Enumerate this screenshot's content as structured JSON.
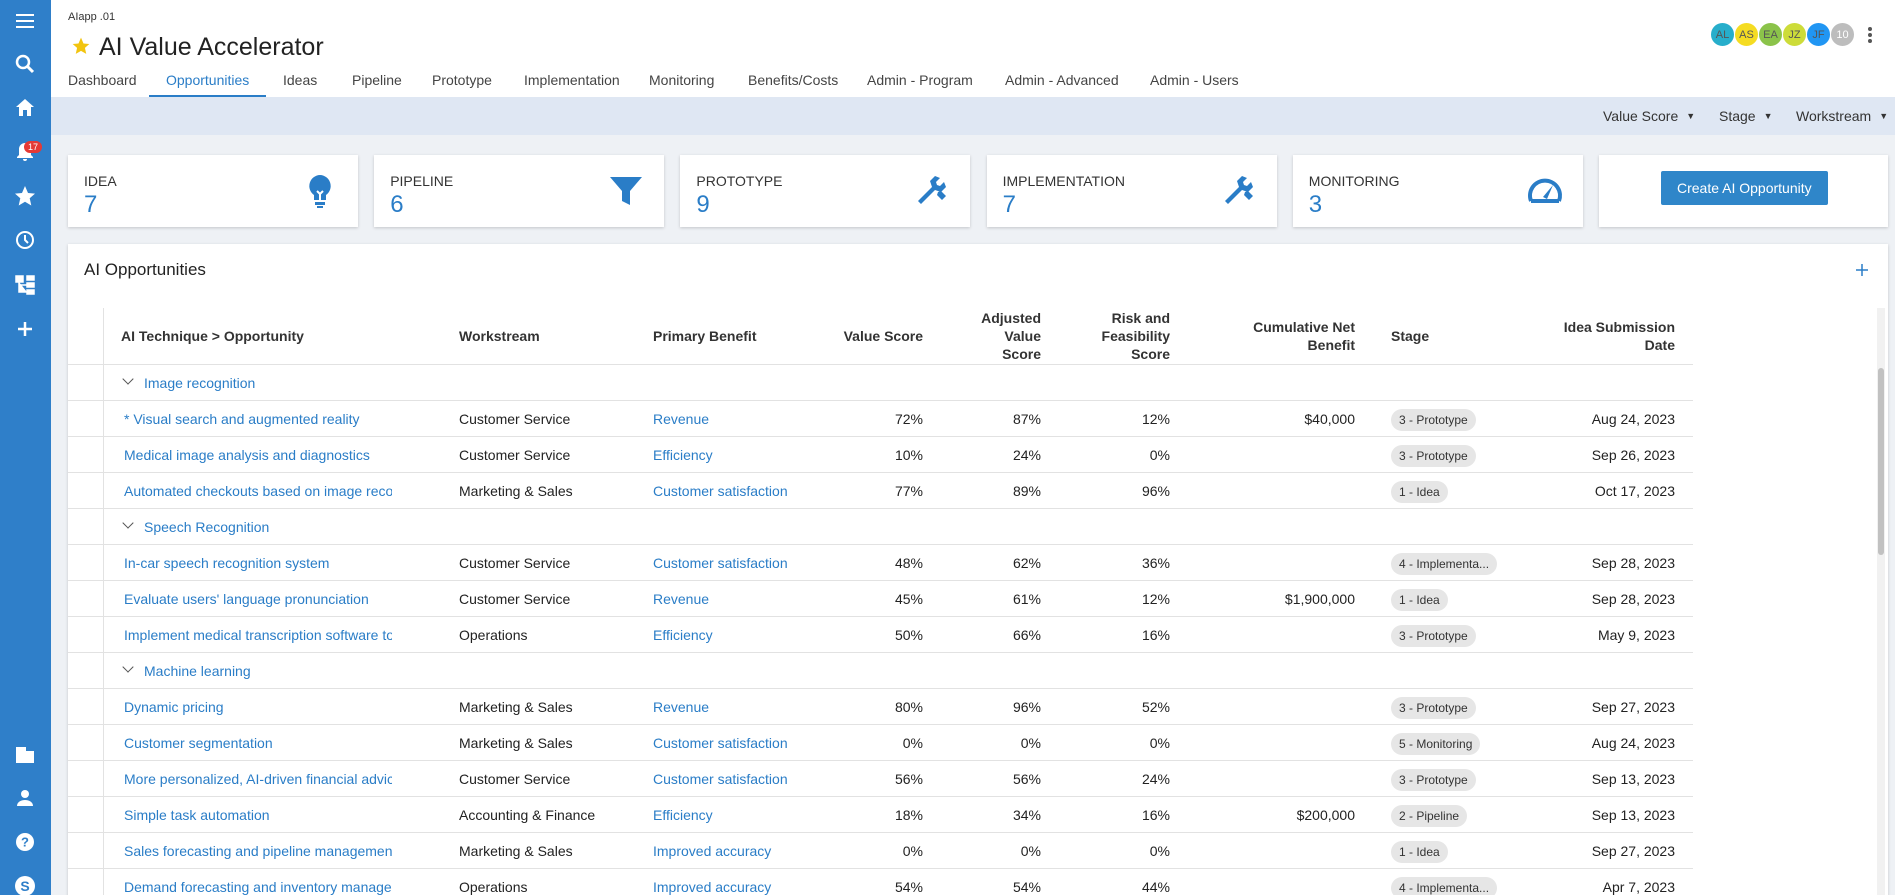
{
  "app": {
    "code": "AIapp .01",
    "title": "AI Value Accelerator"
  },
  "notifications": {
    "count": 17
  },
  "avatars": [
    "AL",
    "AS",
    "EA",
    "JZ",
    "JF",
    "10"
  ],
  "tabs": [
    "Dashboard",
    "Opportunities",
    "Ideas",
    "Pipeline",
    "Prototype",
    "Implementation",
    "Monitoring",
    "Benefits/Costs",
    "Admin - Program",
    "Admin - Advanced",
    "Admin - Users"
  ],
  "filters": [
    "Value Score",
    "Stage",
    "Workstream"
  ],
  "stats": [
    {
      "label": "IDEA",
      "count": 7
    },
    {
      "label": "PIPELINE",
      "count": 6
    },
    {
      "label": "PROTOTYPE",
      "count": 9
    },
    {
      "label": "IMPLEMENTATION",
      "count": 7
    },
    {
      "label": "MONITORING",
      "count": 3
    }
  ],
  "create_button": "Create AI Opportunity",
  "table": {
    "title": "AI Opportunities",
    "columns": [
      "AI Technique > Opportunity",
      "Workstream",
      "Primary Benefit",
      "Value Score",
      "Adjusted Value Score",
      "Risk and Feasibility Score",
      "Cumulative Net Benefit",
      "Stage",
      "Idea Submission Date"
    ],
    "groups": [
      {
        "name": "Image recognition",
        "rows": [
          {
            "name": "* Visual search and augmented reality",
            "workstream": "Customer Service",
            "benefit": "Revenue",
            "value": "72%",
            "adjusted": "87%",
            "risk": "12%",
            "net": "$40,000",
            "stage": "3 - Prototype",
            "date": "Aug 24, 2023"
          },
          {
            "name": "Medical image analysis and diagnostics",
            "workstream": "Customer Service",
            "benefit": "Efficiency",
            "value": "10%",
            "adjusted": "24%",
            "risk": "0%",
            "stage": "3 - Prototype",
            "date": "Sep 26, 2023"
          },
          {
            "name": "Automated checkouts based on image recog",
            "workstream": "Marketing & Sales",
            "benefit": "Customer satisfaction",
            "value": "77%",
            "adjusted": "89%",
            "risk": "96%",
            "stage": "1 - Idea",
            "date": "Oct 17, 2023"
          }
        ]
      },
      {
        "name": "Speech Recognition",
        "rows": [
          {
            "name": "In-car speech recognition system",
            "workstream": "Customer Service",
            "benefit": "Customer satisfaction",
            "value": "48%",
            "adjusted": "62%",
            "risk": "36%",
            "stage": "4 - Implementa...",
            "date": "Sep 28, 2023"
          },
          {
            "name": "Evaluate users' language pronunciation",
            "workstream": "Customer Service",
            "benefit": "Revenue",
            "value": "45%",
            "adjusted": "61%",
            "risk": "12%",
            "net": "$1,900,000",
            "stage": "1 - Idea",
            "date": "Sep 28, 2023"
          },
          {
            "name": "Implement medical transcription software to",
            "workstream": "Operations",
            "benefit": "Efficiency",
            "value": "50%",
            "adjusted": "66%",
            "risk": "16%",
            "stage": "3 - Prototype",
            "date": "May 9, 2023"
          }
        ]
      },
      {
        "name": "Machine learning",
        "rows": [
          {
            "name": "Dynamic pricing",
            "workstream": "Marketing & Sales",
            "benefit": "Revenue",
            "value": "80%",
            "adjusted": "96%",
            "risk": "52%",
            "stage": "3 - Prototype",
            "date": "Sep 27, 2023"
          },
          {
            "name": "Customer segmentation",
            "workstream": "Marketing & Sales",
            "benefit": "Customer satisfaction",
            "value": "0%",
            "adjusted": "0%",
            "risk": "0%",
            "stage": "5 - Monitoring",
            "date": "Aug 24, 2023"
          },
          {
            "name": "More personalized, AI-driven financial advice",
            "workstream": "Customer Service",
            "benefit": "Customer satisfaction",
            "value": "56%",
            "adjusted": "56%",
            "risk": "24%",
            "stage": "3 - Prototype",
            "date": "Sep 13, 2023"
          },
          {
            "name": "Simple task automation",
            "workstream": "Accounting & Finance",
            "benefit": "Efficiency",
            "value": "18%",
            "adjusted": "34%",
            "risk": "16%",
            "net": "$200,000",
            "stage": "2 - Pipeline",
            "date": "Sep 13, 2023"
          },
          {
            "name": "Sales forecasting and pipeline management",
            "workstream": "Marketing & Sales",
            "benefit": "Improved accuracy",
            "value": "0%",
            "adjusted": "0%",
            "risk": "0%",
            "stage": "1 - Idea",
            "date": "Sep 27, 2023"
          },
          {
            "name": "Demand forecasting and inventory managem",
            "workstream": "Operations",
            "benefit": "Improved accuracy",
            "value": "54%",
            "adjusted": "54%",
            "risk": "44%",
            "stage": "4 - Implementa...",
            "date": "Apr 7, 2023"
          }
        ]
      }
    ]
  }
}
